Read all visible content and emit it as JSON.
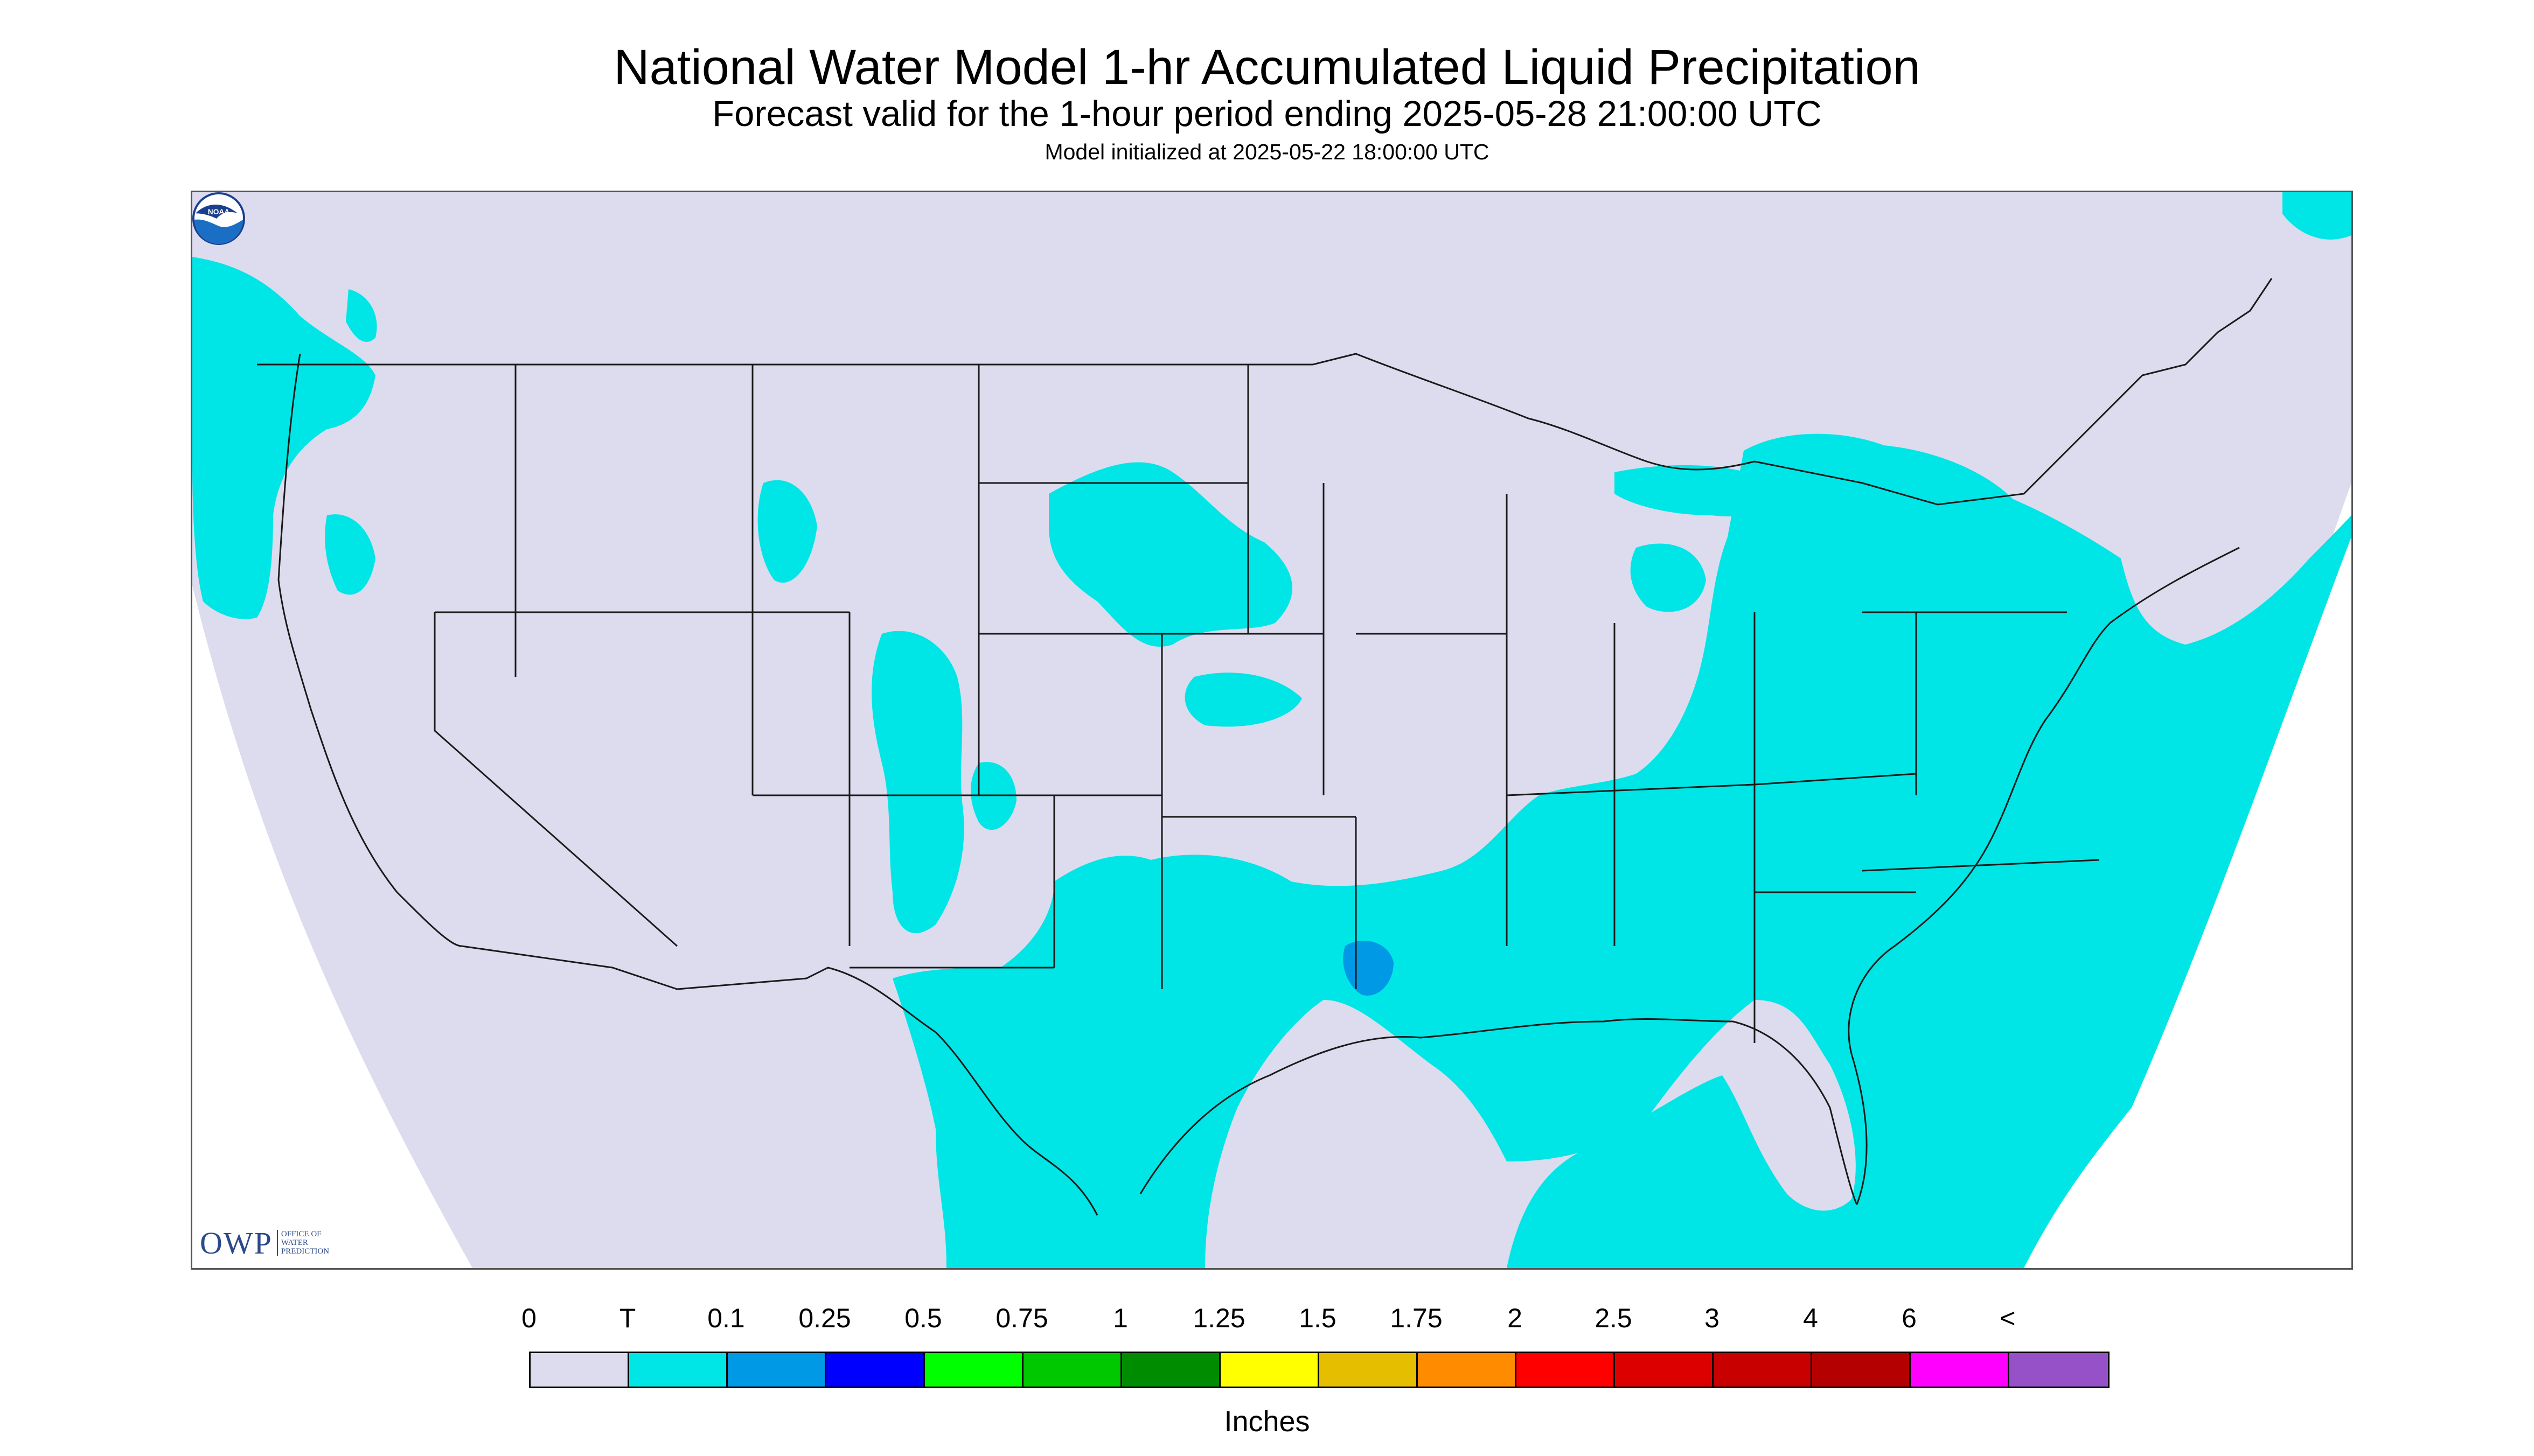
{
  "header": {
    "title": "National Water Model 1-hr Accumulated Liquid Precipitation",
    "subtitle": "Forecast valid for the 1-hour period ending 2025-05-28 21:00:00 UTC",
    "init_line": "Model initialized at 2025-05-22 18:00:00 UTC"
  },
  "map": {
    "background_color": "#dcdcee",
    "outside_color": "#ffffff",
    "boundary_color": "#1a1a1a",
    "precip_light_color": "#00e6e6",
    "precip_moderate_color": "#0099e6"
  },
  "logos": {
    "owp_letters": "OWP",
    "owp_text": "Office of Water Prediction",
    "noaa_text": "NOAA"
  },
  "legend": {
    "tick_labels": [
      "0",
      "T",
      "0.1",
      "0.25",
      "0.5",
      "0.75",
      "1",
      "1.25",
      "1.5",
      "1.75",
      "2",
      "2.5",
      "3",
      "4",
      "6",
      "<"
    ],
    "colors": [
      "#dcdcee",
      "#00e6e6",
      "#0099e6",
      "#0000ff",
      "#00ff00",
      "#00c800",
      "#008c00",
      "#ffff00",
      "#e6be00",
      "#ff8c00",
      "#ff0000",
      "#dc0000",
      "#c80000",
      "#b40000",
      "#ff00ff",
      "#9650c8"
    ],
    "units": "Inches"
  }
}
